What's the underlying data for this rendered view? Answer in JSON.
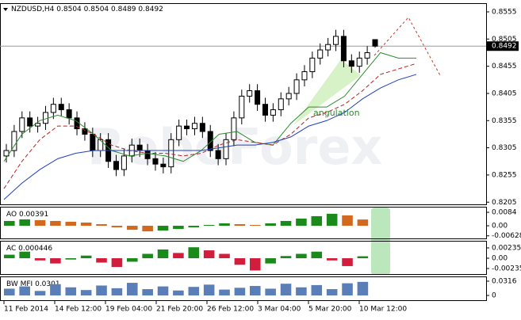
{
  "chart_data": {
    "type": "candlestick",
    "symbol": "NZDUSD,H4",
    "quote": [
      0.8504,
      0.8504,
      0.8489,
      0.8492
    ],
    "open": [
      0.829,
      0.83,
      0.8335,
      0.836,
      0.8345,
      0.835,
      0.837,
      0.8385,
      0.8375,
      0.836,
      0.834,
      0.833,
      0.83,
      0.832,
      0.828,
      0.8265,
      0.829,
      0.831,
      0.83,
      0.8285,
      0.8275,
      0.827,
      0.832,
      0.8345,
      0.834,
      0.835,
      0.8335,
      0.83,
      0.8285,
      0.832,
      0.836,
      0.84,
      0.841,
      0.8385,
      0.8365,
      0.8375,
      0.8395,
      0.8405,
      0.843,
      0.8445,
      0.847,
      0.8485,
      0.8495,
      0.851,
      0.8465,
      0.8455,
      0.847,
      0.8504
    ],
    "high": [
      0.8312,
      0.8347,
      0.8372,
      0.8372,
      0.8362,
      0.8382,
      0.8397,
      0.8397,
      0.8387,
      0.8372,
      0.8352,
      0.8342,
      0.8332,
      0.8332,
      0.8292,
      0.8302,
      0.8322,
      0.8322,
      0.8312,
      0.8297,
      0.8287,
      0.8332,
      0.8357,
      0.8357,
      0.8362,
      0.8362,
      0.8347,
      0.8312,
      0.8332,
      0.8372,
      0.8412,
      0.8422,
      0.8422,
      0.8397,
      0.8387,
      0.8407,
      0.8417,
      0.8442,
      0.8457,
      0.8482,
      0.8497,
      0.8507,
      0.8522,
      0.8522,
      0.8477,
      0.8482,
      0.8492,
      0.8504
    ],
    "low": [
      0.8278,
      0.8288,
      0.8323,
      0.8333,
      0.8333,
      0.8338,
      0.8358,
      0.8363,
      0.8348,
      0.8328,
      0.8318,
      0.8288,
      0.8288,
      0.8268,
      0.8253,
      0.8253,
      0.8278,
      0.8288,
      0.8273,
      0.8263,
      0.8258,
      0.8258,
      0.8308,
      0.8328,
      0.8328,
      0.8323,
      0.8288,
      0.8273,
      0.8273,
      0.8308,
      0.8348,
      0.8388,
      0.8373,
      0.8353,
      0.8353,
      0.8363,
      0.8383,
      0.8393,
      0.8418,
      0.8433,
      0.8458,
      0.8473,
      0.8483,
      0.8453,
      0.8443,
      0.8443,
      0.8458,
      0.8489
    ],
    "close": [
      0.83,
      0.8335,
      0.836,
      0.8345,
      0.835,
      0.837,
      0.8385,
      0.8375,
      0.836,
      0.834,
      0.833,
      0.83,
      0.832,
      0.828,
      0.8265,
      0.829,
      0.831,
      0.83,
      0.8285,
      0.8275,
      0.827,
      0.832,
      0.8345,
      0.834,
      0.835,
      0.8335,
      0.83,
      0.8285,
      0.832,
      0.836,
      0.84,
      0.841,
      0.8385,
      0.8365,
      0.8375,
      0.8395,
      0.8405,
      0.843,
      0.8445,
      0.847,
      0.8485,
      0.8495,
      0.851,
      0.8465,
      0.8455,
      0.847,
      0.848,
      0.8492
    ],
    "ylim": [
      0.8201,
      0.8571
    ],
    "yticks": [
      0.8555,
      0.8505,
      0.8455,
      0.8405,
      0.8355,
      0.8305,
      0.8255,
      0.8205
    ],
    "moving_averages": [
      {
        "color": "#2e8b2e",
        "dash": false,
        "values": [
          0.828,
          0.833,
          0.8355,
          0.8365,
          0.8355,
          0.833,
          0.83,
          0.829,
          0.8295,
          0.829,
          0.828,
          0.83,
          0.833,
          0.8335,
          0.8315,
          0.831,
          0.835,
          0.838,
          0.838,
          0.84,
          0.844,
          0.848,
          0.847,
          0.847
        ]
      },
      {
        "color": "#b22222",
        "dash": true,
        "values": [
          0.823,
          0.828,
          0.832,
          0.8345,
          0.8345,
          0.833,
          0.831,
          0.83,
          0.8295,
          0.8295,
          0.829,
          0.8295,
          0.831,
          0.832,
          0.8315,
          0.831,
          0.833,
          0.836,
          0.837,
          0.8385,
          0.841,
          0.844,
          0.845,
          0.846
        ]
      },
      {
        "color": "#1f3fbf",
        "dash": false,
        "values": [
          0.821,
          0.824,
          0.8265,
          0.8285,
          0.8295,
          0.83,
          0.83,
          0.83,
          0.83,
          0.83,
          0.83,
          0.83,
          0.8305,
          0.831,
          0.831,
          0.8315,
          0.8325,
          0.8345,
          0.8355,
          0.837,
          0.8395,
          0.8415,
          0.843,
          0.844
        ]
      }
    ],
    "annotation": "angulation",
    "x_labels": [
      "11 Feb 2014",
      "14 Feb 12:00",
      "19 Feb 04:00",
      "21 Feb 20:00",
      "26 Feb 12:00",
      "3 Mar 04:00",
      "5 Mar 20:00",
      "10 Mar 12:00"
    ],
    "indicators": [
      {
        "name": "AO",
        "value": 0.00391,
        "ylim": [
          -0.0084,
          0.0114
        ],
        "yticks": [
          0.0084,
          {
            "value": 0,
            "label": "0.00"
          },
          -0.00628
        ],
        "values": [
          0.003,
          0.004,
          0.0035,
          0.003,
          0.0025,
          0.002,
          0.001,
          -0.001,
          -0.0025,
          -0.0035,
          -0.003,
          -0.002,
          -0.001,
          0.0005,
          0.0015,
          0.001,
          0.0005,
          0.0015,
          0.003,
          0.0045,
          0.006,
          0.0075,
          0.0065,
          0.00391
        ]
      },
      {
        "name": "AC",
        "value": 0.000446,
        "ylim": [
          -0.0038,
          0.0038
        ],
        "yticks": [
          0.002356,
          {
            "value": 0,
            "label": "0.00"
          },
          -0.00235
        ],
        "values": [
          0.0008,
          0.0015,
          -0.0005,
          -0.0012,
          -0.0003,
          0.0006,
          -0.001,
          -0.002,
          -0.0008,
          0.001,
          0.002,
          0.0012,
          0.0025,
          0.0018,
          0.001,
          -0.0015,
          -0.0028,
          -0.0012,
          0.0005,
          0.001,
          0.0015,
          -0.0005,
          -0.0018,
          0.000446
        ]
      },
      {
        "name": "BW MFI",
        "value": 0.0301,
        "ylim": [
          -0.0123,
          0.0404
        ],
        "yticks": [
          0.0316,
          0
        ],
        "values": [
          0.015,
          0.02,
          0.01,
          0.025,
          0.018,
          0.012,
          0.022,
          0.016,
          0.028,
          0.014,
          0.02,
          0.011,
          0.019,
          0.024,
          0.013,
          0.017,
          0.021,
          0.015,
          0.026,
          0.018,
          0.023,
          0.014,
          0.027,
          0.0301
        ]
      }
    ]
  }
}
